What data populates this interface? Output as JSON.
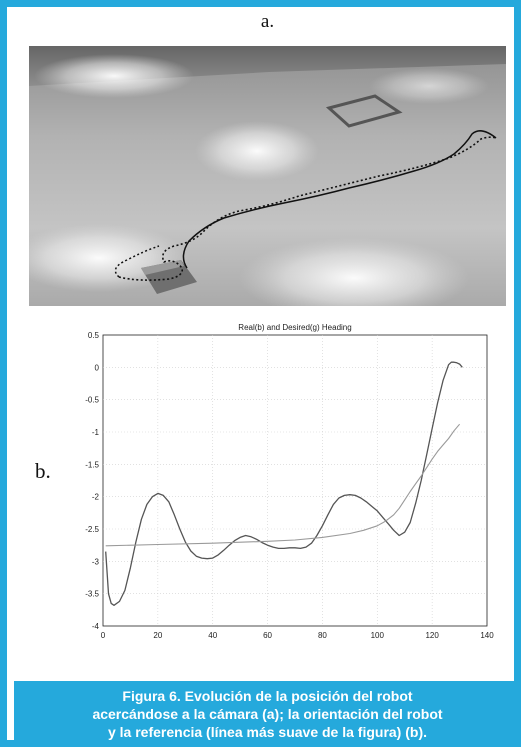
{
  "figure": {
    "label_a": "a.",
    "label_b": "b.",
    "caption_lines": [
      "Figura 6. Evolución de la posición del robot",
      "acercándose a la cámara (a); la orientación del robot",
      "y la referencia (línea más suave de la figura) (b)."
    ],
    "border_color": "#25a9dc"
  },
  "chart_data": {
    "type": "line",
    "title": "Real(b) and Desired(g) Heading",
    "xlabel": "",
    "ylabel": "",
    "xlim": [
      0,
      140
    ],
    "ylim": [
      -4,
      0.5
    ],
    "xticks": [
      0,
      20,
      40,
      60,
      80,
      100,
      120,
      140
    ],
    "yticks": [
      0.5,
      0,
      -0.5,
      -1,
      -1.5,
      -2,
      -2.5,
      -3,
      -3.5,
      -4
    ],
    "grid": true,
    "series": [
      {
        "color": "#555555",
        "x": [
          1,
          2,
          3,
          4,
          6,
          8,
          10,
          12,
          14,
          16,
          18,
          20,
          22,
          24,
          26,
          28,
          30,
          32,
          34,
          36,
          38,
          40,
          42,
          44,
          46,
          48,
          50,
          52,
          54,
          56,
          58,
          60,
          62,
          64,
          66,
          68,
          70,
          72,
          74,
          76,
          78,
          80,
          82,
          84,
          86,
          88,
          90,
          92,
          94,
          96,
          98,
          100,
          102,
          104,
          106,
          108,
          110,
          112,
          114,
          116,
          118,
          120,
          122,
          124,
          126,
          127,
          128,
          129,
          130,
          131
        ],
        "y": [
          -2.85,
          -3.5,
          -3.65,
          -3.68,
          -3.62,
          -3.45,
          -3.1,
          -2.7,
          -2.35,
          -2.12,
          -2.0,
          -1.95,
          -1.98,
          -2.08,
          -2.28,
          -2.5,
          -2.7,
          -2.84,
          -2.92,
          -2.95,
          -2.96,
          -2.95,
          -2.9,
          -2.83,
          -2.75,
          -2.68,
          -2.63,
          -2.6,
          -2.62,
          -2.66,
          -2.71,
          -2.75,
          -2.78,
          -2.8,
          -2.8,
          -2.79,
          -2.79,
          -2.8,
          -2.78,
          -2.72,
          -2.6,
          -2.45,
          -2.28,
          -2.12,
          -2.02,
          -1.98,
          -1.97,
          -1.98,
          -2.02,
          -2.08,
          -2.15,
          -2.22,
          -2.32,
          -2.42,
          -2.52,
          -2.6,
          -2.55,
          -2.4,
          -2.1,
          -1.75,
          -1.35,
          -0.95,
          -0.55,
          -0.2,
          0.04,
          0.08,
          0.08,
          0.07,
          0.05,
          0.0
        ]
      },
      {
        "color": "#9a9a9a",
        "x": [
          1,
          20,
          40,
          60,
          70,
          80,
          90,
          95,
          100,
          103,
          106,
          108,
          110,
          112,
          114,
          116,
          118,
          120,
          122,
          124,
          126,
          128,
          130
        ],
        "y": [
          -2.76,
          -2.74,
          -2.72,
          -2.69,
          -2.67,
          -2.63,
          -2.57,
          -2.52,
          -2.45,
          -2.38,
          -2.28,
          -2.18,
          -2.05,
          -1.92,
          -1.8,
          -1.68,
          -1.55,
          -1.42,
          -1.3,
          -1.2,
          -1.1,
          -0.98,
          -0.88
        ]
      }
    ]
  }
}
